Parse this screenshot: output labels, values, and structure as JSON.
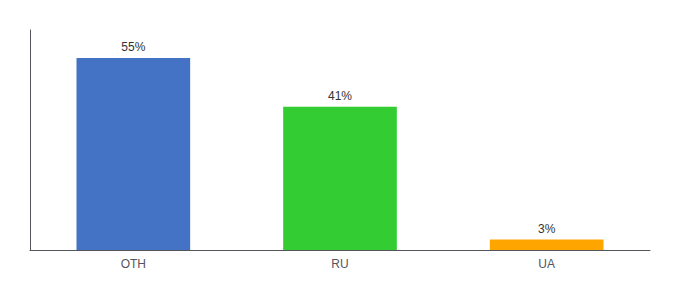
{
  "chart_data": {
    "type": "bar",
    "categories": [
      "OTH",
      "RU",
      "UA"
    ],
    "values": [
      55,
      41,
      3
    ],
    "value_labels": [
      "55%",
      "41%",
      "3%"
    ],
    "colors": [
      "#4472C4",
      "#33CC33",
      "#FFA500"
    ],
    "ylim": [
      0,
      63
    ],
    "grid": false,
    "data_labels": true,
    "tick_labels": "x"
  }
}
